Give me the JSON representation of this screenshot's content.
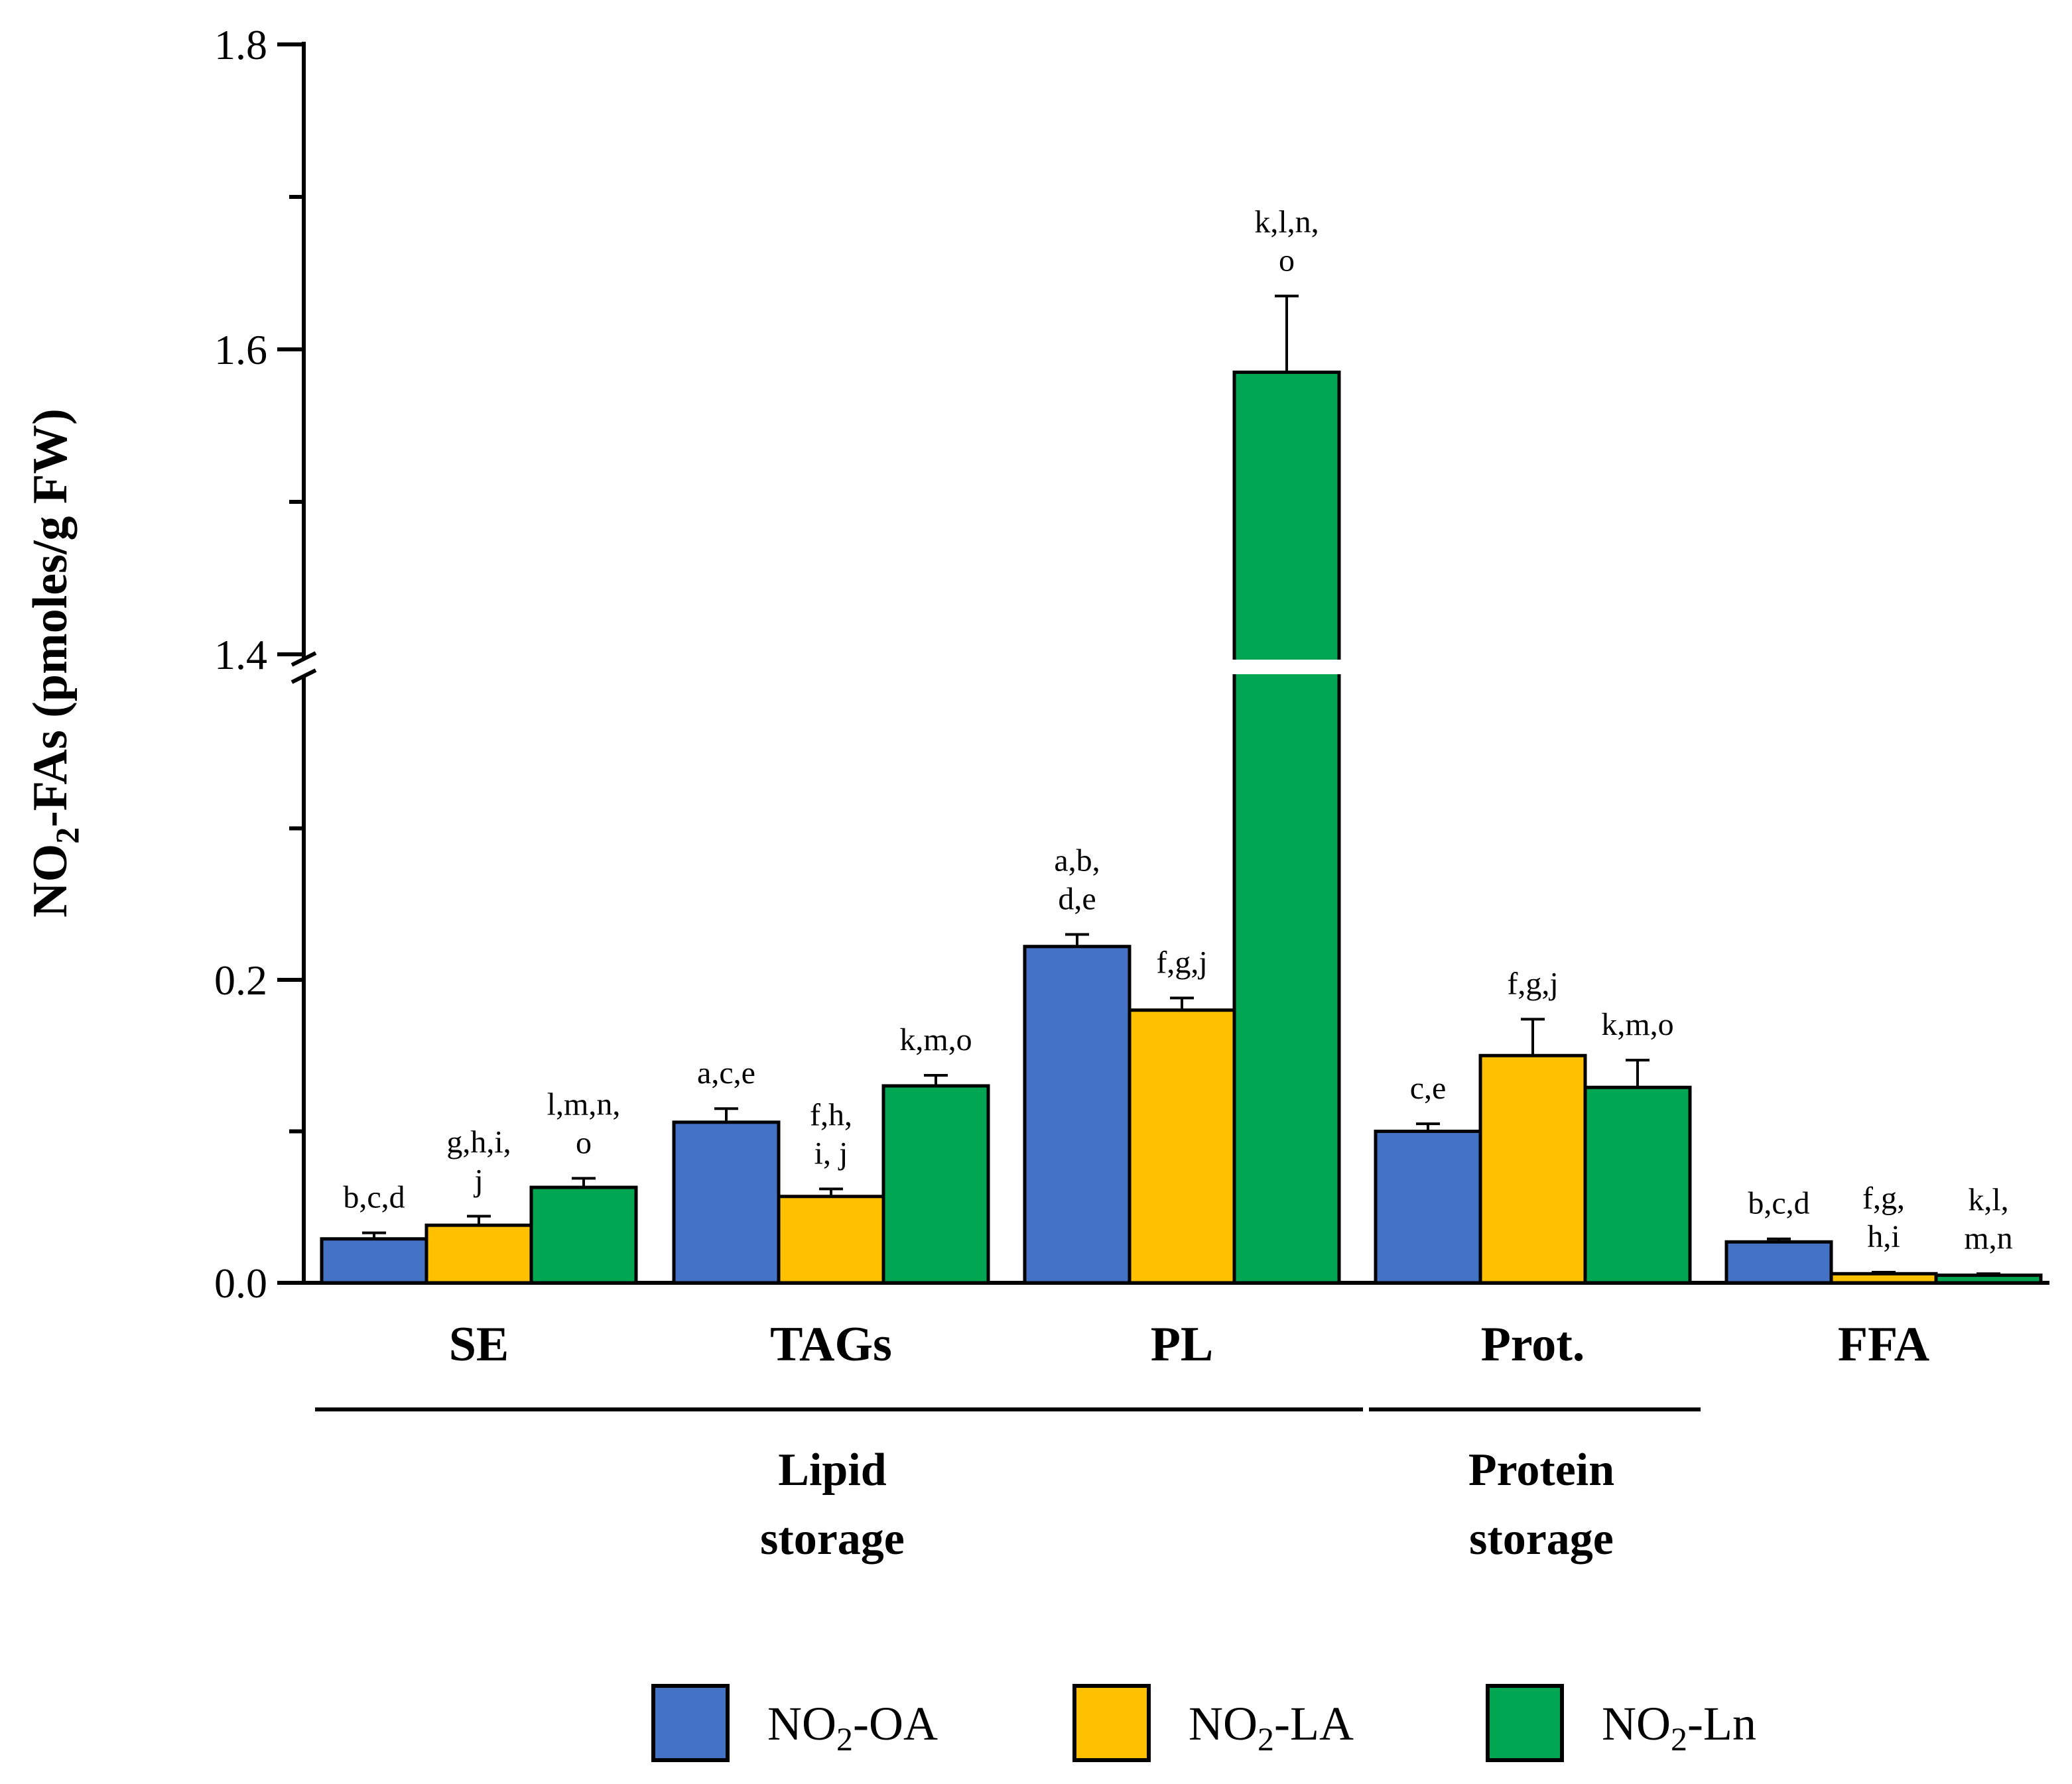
{
  "chart_data": {
    "type": "bar",
    "ylabel": "NO",
    "ylabel_sub": "2",
    "ylabel_rest": "-FAs (pmoles/g FW)",
    "axis_break": {
      "from": 0.3,
      "to": 1.4
    },
    "ylim": [
      0,
      1.8
    ],
    "yticks": [
      {
        "value": 0.0,
        "label": "0.0"
      },
      {
        "value": 0.2,
        "label": "0.2"
      },
      {
        "value": 1.4,
        "label": "1.4"
      },
      {
        "value": 1.6,
        "label": "1.6"
      },
      {
        "value": 1.8,
        "label": "1.8"
      }
    ],
    "minor_ticks": [
      0.1,
      0.3,
      1.5,
      1.7
    ],
    "categories": [
      "SE",
      "TAGs",
      "PL",
      "Prot.",
      "FFA"
    ],
    "series": [
      {
        "prefix": "NO",
        "sub": "2",
        "suffix": "-OA",
        "color": "#4472c4",
        "values": [
          0.029,
          0.106,
          0.222,
          0.1,
          0.027
        ],
        "errors": [
          0.004,
          0.009,
          0.008,
          0.005,
          0.002
        ],
        "annotations": [
          [
            "b,c,d"
          ],
          [
            "a,c,e"
          ],
          [
            "a,b,",
            "d,e"
          ],
          [
            "c,e"
          ],
          [
            "b,c,d"
          ]
        ]
      },
      {
        "prefix": "NO",
        "sub": "2",
        "suffix": "-LA",
        "color": "#ffc000",
        "values": [
          0.038,
          0.057,
          0.18,
          0.15,
          0.006
        ],
        "errors": [
          0.006,
          0.005,
          0.008,
          0.024,
          0.001
        ],
        "annotations": [
          [
            "g,h,i,",
            "j"
          ],
          [
            "f,h,",
            "i, j"
          ],
          [
            "f,g,j"
          ],
          [
            "f,g,j"
          ],
          [
            "f,g,",
            "h,i"
          ]
        ]
      },
      {
        "prefix": "NO",
        "sub": "2",
        "suffix": "-Ln",
        "color": "#00a651",
        "values": [
          0.063,
          0.13,
          1.585,
          0.129,
          0.005
        ],
        "errors": [
          0.006,
          0.007,
          0.05,
          0.018,
          0.001
        ],
        "annotations": [
          [
            "l,m,n,",
            "o"
          ],
          [
            "k,m,o"
          ],
          [
            "k,l,n,",
            "o"
          ],
          [
            "k,m,o"
          ],
          [
            "k,l,",
            "m,n"
          ]
        ]
      }
    ],
    "groups": [
      {
        "lines": [
          "Lipid",
          "storage"
        ],
        "from": 0,
        "to": 2
      },
      {
        "lines": [
          "Protein",
          "storage"
        ],
        "from": 3,
        "to": 3
      }
    ],
    "legend_position": "bottom-center"
  }
}
